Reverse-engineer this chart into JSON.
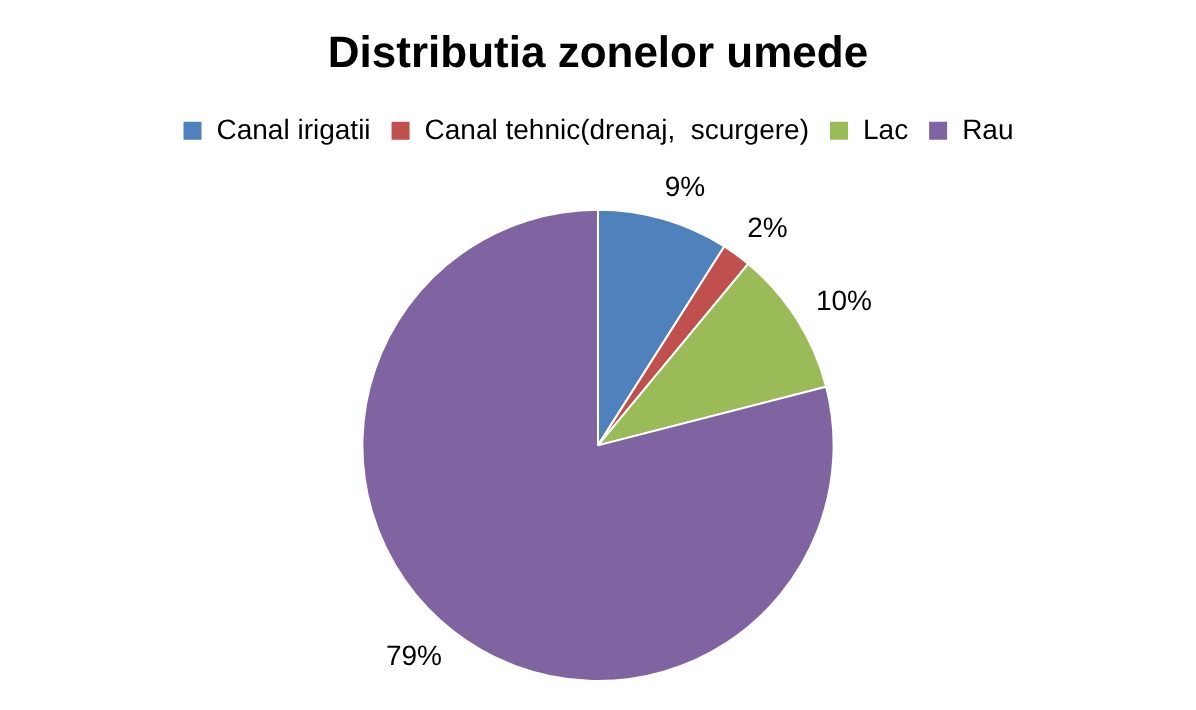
{
  "chart_data": {
    "type": "pie",
    "title": "Distributia zonelor umede",
    "categories": [
      "Canal irigatii",
      "Canal tehnic(drenaj,  scurgere)",
      "Lac",
      "Rau"
    ],
    "values": [
      9,
      2,
      10,
      79
    ],
    "colors": [
      "#4f81bd",
      "#c0504d",
      "#9bbb59",
      "#8064a2"
    ],
    "value_labels": [
      "9%",
      "2%",
      "10%",
      "79%"
    ],
    "legend": "top"
  }
}
